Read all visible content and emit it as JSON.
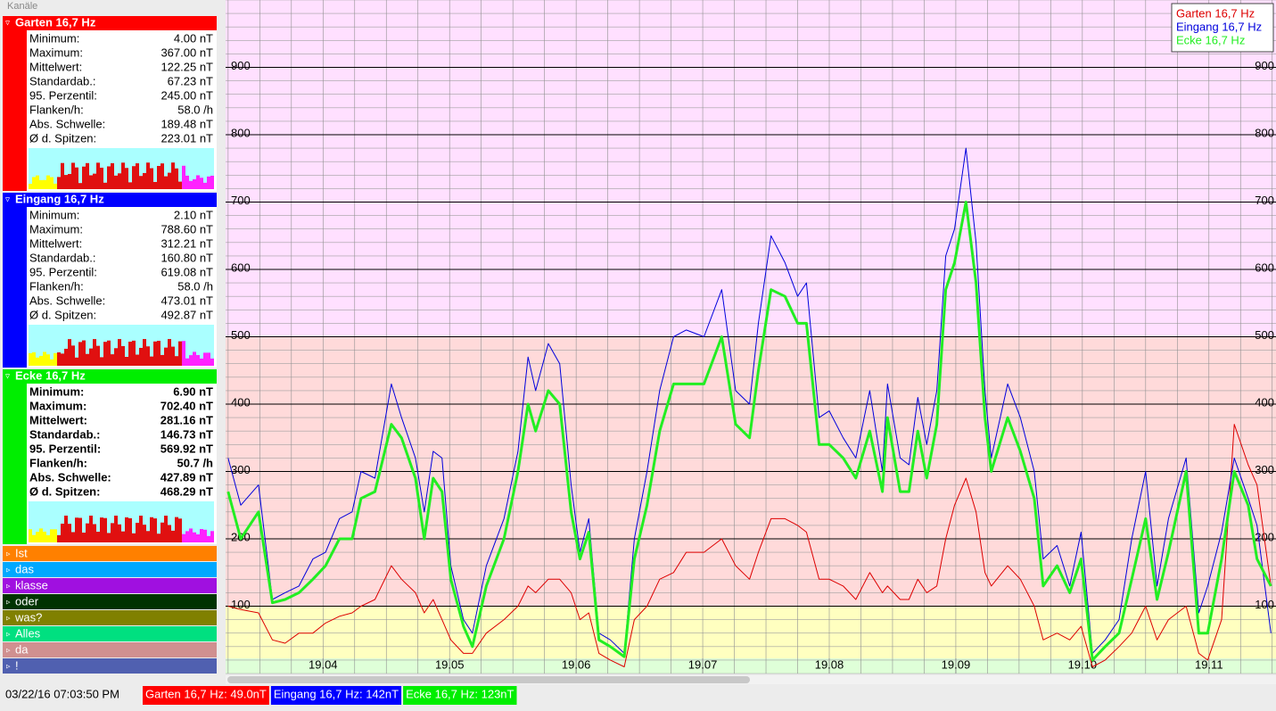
{
  "panel": {
    "title": "Kanäle",
    "channels": [
      {
        "name": "Garten 16,7 Hz",
        "color": "#ff0000",
        "bold": false,
        "stats": [
          [
            "Minimum:",
            "4.00 nT"
          ],
          [
            "Maximum:",
            "367.00 nT"
          ],
          [
            "Mittelwert:",
            "122.25 nT"
          ],
          [
            "Standardab.:",
            "67.23 nT"
          ],
          [
            "95. Perzentil:",
            "245.00 nT"
          ],
          [
            "Flanken/h:",
            "58.0 /h"
          ],
          [
            "Abs. Schwelle:",
            "189.48 nT"
          ],
          [
            "Ø d. Spitzen:",
            "223.01 nT"
          ]
        ]
      },
      {
        "name": "Eingang 16,7 Hz",
        "color": "#0000ff",
        "bold": false,
        "stats": [
          [
            "Minimum:",
            "2.10 nT"
          ],
          [
            "Maximum:",
            "788.60 nT"
          ],
          [
            "Mittelwert:",
            "312.21 nT"
          ],
          [
            "Standardab.:",
            "160.80 nT"
          ],
          [
            "95. Perzentil:",
            "619.08 nT"
          ],
          [
            "Flanken/h:",
            "58.0 /h"
          ],
          [
            "Abs. Schwelle:",
            "473.01 nT"
          ],
          [
            "Ø d. Spitzen:",
            "492.87 nT"
          ]
        ]
      },
      {
        "name": "Ecke 16,7 Hz",
        "color": "#00ee00",
        "bold": true,
        "stats": [
          [
            "Minimum:",
            "6.90 nT"
          ],
          [
            "Maximum:",
            "702.40 nT"
          ],
          [
            "Mittelwert:",
            "281.16 nT"
          ],
          [
            "Standardab.:",
            "146.73 nT"
          ],
          [
            "95. Perzentil:",
            "569.92 nT"
          ],
          [
            "Flanken/h:",
            "50.7 /h"
          ],
          [
            "Abs. Schwelle:",
            "427.89 nT"
          ],
          [
            "Ø d. Spitzen:",
            "468.29 nT"
          ]
        ]
      }
    ],
    "groups": [
      {
        "name": "Ist",
        "color": "#ff8000"
      },
      {
        "name": "das",
        "color": "#00a8ff"
      },
      {
        "name": "klasse",
        "color": "#a010e0"
      },
      {
        "name": "oder",
        "color": "#003300"
      },
      {
        "name": "was?",
        "color": "#808000"
      },
      {
        "name": "Alles",
        "color": "#00e080"
      },
      {
        "name": "da",
        "color": "#d09090"
      },
      {
        "name": "!",
        "color": "#5060b0"
      }
    ]
  },
  "chart_data": {
    "type": "line",
    "x": [
      0.25,
      0.35,
      0.49,
      0.6,
      0.7,
      0.81,
      0.92,
      1.02,
      1.13,
      1.23,
      1.3,
      1.41,
      1.54,
      1.62,
      1.73,
      1.8,
      1.87,
      1.94,
      2.01,
      2.11,
      2.18,
      2.29,
      2.43,
      2.54,
      2.62,
      2.68,
      2.78,
      2.87,
      2.96,
      3.03,
      3.1,
      3.18,
      3.27,
      3.38,
      3.46,
      3.56,
      3.66,
      3.77,
      3.87,
      4.01,
      4.15,
      4.26,
      4.37,
      4.44,
      4.54,
      4.65,
      4.75,
      4.82,
      4.92,
      5.0,
      5.11,
      5.21,
      5.32,
      5.42,
      5.46,
      5.56,
      5.63,
      5.7,
      5.77,
      5.85,
      5.92,
      5.99,
      6.08,
      6.16,
      6.23,
      6.28,
      6.41,
      6.51,
      6.62,
      6.69,
      6.8,
      6.9,
      6.99,
      7.08,
      7.18,
      7.29,
      7.39,
      7.5,
      7.59,
      7.68,
      7.82,
      7.92,
      7.99,
      8.1,
      8.2,
      8.31,
      8.38,
      8.49
    ],
    "series": [
      {
        "name": "Garten 16,7 Hz",
        "color": "#dd0000",
        "width": 1,
        "values": [
          100,
          95,
          90,
          50,
          45,
          60,
          60,
          75,
          85,
          90,
          100,
          110,
          160,
          140,
          120,
          90,
          110,
          80,
          50,
          30,
          30,
          60,
          80,
          100,
          130,
          120,
          140,
          140,
          120,
          80,
          90,
          30,
          20,
          10,
          80,
          100,
          140,
          150,
          180,
          180,
          200,
          160,
          140,
          180,
          230,
          230,
          220,
          210,
          140,
          140,
          130,
          110,
          150,
          120,
          130,
          110,
          110,
          140,
          120,
          130,
          200,
          250,
          290,
          240,
          150,
          130,
          160,
          140,
          100,
          50,
          60,
          50,
          70,
          10,
          20,
          40,
          60,
          100,
          50,
          80,
          100,
          30,
          20,
          80,
          370,
          310,
          280,
          130
        ]
      },
      {
        "name": "Eingang 16,7 Hz",
        "color": "#0000dd",
        "width": 1,
        "values": [
          320,
          250,
          280,
          110,
          120,
          130,
          170,
          180,
          230,
          240,
          300,
          290,
          430,
          380,
          320,
          240,
          330,
          320,
          160,
          80,
          60,
          160,
          230,
          330,
          470,
          420,
          490,
          460,
          280,
          180,
          230,
          60,
          50,
          30,
          200,
          300,
          420,
          500,
          510,
          500,
          570,
          420,
          400,
          520,
          650,
          610,
          560,
          580,
          380,
          390,
          350,
          320,
          420,
          300,
          430,
          320,
          310,
          410,
          340,
          420,
          620,
          660,
          780,
          640,
          420,
          320,
          430,
          380,
          300,
          170,
          190,
          130,
          210,
          30,
          50,
          80,
          200,
          300,
          130,
          230,
          320,
          90,
          130,
          210,
          320,
          260,
          220,
          60
        ]
      },
      {
        "name": "Ecke 16,7 Hz",
        "color": "#22ee22",
        "width": 3,
        "values": [
          270,
          200,
          240,
          105,
          110,
          120,
          140,
          160,
          200,
          200,
          260,
          270,
          370,
          350,
          290,
          200,
          290,
          270,
          140,
          70,
          40,
          130,
          200,
          300,
          400,
          360,
          420,
          400,
          240,
          170,
          210,
          50,
          40,
          25,
          170,
          250,
          360,
          430,
          430,
          430,
          500,
          370,
          350,
          450,
          570,
          560,
          520,
          520,
          340,
          340,
          320,
          290,
          360,
          270,
          380,
          270,
          270,
          360,
          290,
          370,
          570,
          610,
          700,
          580,
          380,
          300,
          380,
          330,
          260,
          130,
          160,
          120,
          170,
          20,
          40,
          60,
          140,
          230,
          110,
          180,
          300,
          60,
          60,
          170,
          300,
          250,
          170,
          130
        ]
      }
    ],
    "xlim": [
      0.23,
      8.53
    ],
    "xticks": [
      {
        "value": 1,
        "label": "19.04"
      },
      {
        "value": 2,
        "label": "19.05"
      },
      {
        "value": 3,
        "label": "19.06"
      },
      {
        "value": 4,
        "label": "19.07"
      },
      {
        "value": 5,
        "label": "19.08"
      },
      {
        "value": 6,
        "label": "19.09"
      },
      {
        "value": 7,
        "label": "19.10"
      },
      {
        "value": 8,
        "label": "19.11"
      }
    ],
    "ylim": [
      0,
      1000
    ],
    "yticks": [
      100,
      200,
      300,
      400,
      500,
      600,
      700,
      800,
      900
    ],
    "y_minor_step": 20,
    "x_minor_step": 0.25,
    "bands": [
      {
        "from": 0,
        "to": 100,
        "color": "#ffffc0"
      },
      {
        "from": 100,
        "to": 500,
        "color": "#ffdada"
      },
      {
        "from": 500,
        "to": 1000,
        "color": "#ffe0ff"
      }
    ],
    "grid": true,
    "legend": "top-right"
  },
  "status": {
    "time": "03/22/16 07:03:50 PM",
    "items": [
      {
        "text": "Garten 16,7 Hz: 49.0nT",
        "color": "#ff0000"
      },
      {
        "text": "Eingang 16,7 Hz: 142nT",
        "color": "#0000ff"
      },
      {
        "text": "Ecke 16,7 Hz: 123nT",
        "color": "#00ee00"
      }
    ]
  }
}
